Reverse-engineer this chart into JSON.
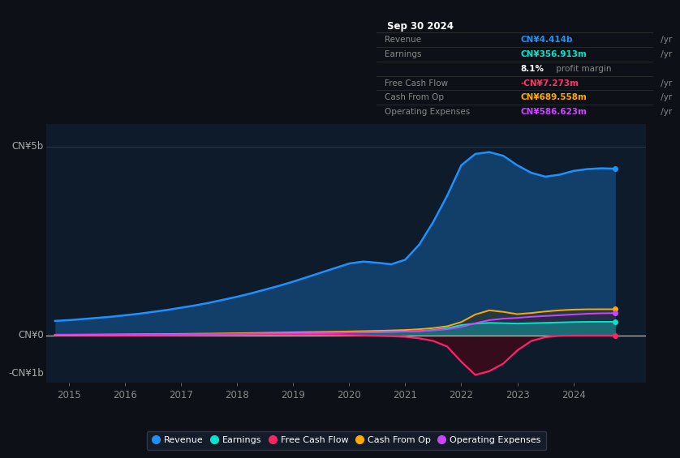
{
  "background_color": "#0d1117",
  "plot_bg_color": "#0d1b2a",
  "ylabel_5b": "CN¥5b",
  "ylabel_0": "CN¥0",
  "ylabel_neg1b": "-CN¥1b",
  "ylim": [
    -1250000000.0,
    5600000000.0
  ],
  "xlim": [
    2014.6,
    2025.3
  ],
  "xticks": [
    2015,
    2016,
    2017,
    2018,
    2019,
    2020,
    2021,
    2022,
    2023,
    2024
  ],
  "grid_color": "#2a3a4a",
  "info_box": {
    "title": "Sep 30 2024",
    "rows": [
      {
        "label": "Revenue",
        "value": "CN¥4.414b /yr",
        "value_color": "#1e90ff"
      },
      {
        "label": "Earnings",
        "value": "CN¥356.913m /yr",
        "value_color": "#00e5cc"
      },
      {
        "label": "",
        "value": "8.1% profit margin",
        "value_color": "#aaaaaa"
      },
      {
        "label": "Free Cash Flow",
        "value": "-CN¥7.273m /yr",
        "value_color": "#ff3366"
      },
      {
        "label": "Cash From Op",
        "value": "CN¥689.558m /yr",
        "value_color": "#ffaa00"
      },
      {
        "label": "Operating Expenses",
        "value": "CN¥586.623m /yr",
        "value_color": "#cc44ff"
      }
    ]
  },
  "series": {
    "years": [
      2014.75,
      2015.0,
      2015.25,
      2015.5,
      2015.75,
      2016.0,
      2016.25,
      2016.5,
      2016.75,
      2017.0,
      2017.25,
      2017.5,
      2017.75,
      2018.0,
      2018.25,
      2018.5,
      2018.75,
      2019.0,
      2019.25,
      2019.5,
      2019.75,
      2020.0,
      2020.25,
      2020.5,
      2020.75,
      2021.0,
      2021.25,
      2021.5,
      2021.75,
      2022.0,
      2022.25,
      2022.5,
      2022.75,
      2023.0,
      2023.25,
      2023.5,
      2023.75,
      2024.0,
      2024.25,
      2024.5,
      2024.75
    ],
    "revenue": [
      380000000.0,
      400000000.0,
      430000000.0,
      460000000.0,
      490000000.0,
      530000000.0,
      570000000.0,
      620000000.0,
      670000000.0,
      730000000.0,
      790000000.0,
      860000000.0,
      940000000.0,
      1020000000.0,
      1110000000.0,
      1210000000.0,
      1310000000.0,
      1420000000.0,
      1540000000.0,
      1660000000.0,
      1780000000.0,
      1900000000.0,
      1950000000.0,
      1920000000.0,
      1880000000.0,
      2000000000.0,
      2400000000.0,
      3000000000.0,
      3700000000.0,
      4500000000.0,
      4800000000.0,
      4850000000.0,
      4750000000.0,
      4500000000.0,
      4300000000.0,
      4200000000.0,
      4250000000.0,
      4350000000.0,
      4400000000.0,
      4420000000.0,
      4410000000.0
    ],
    "earnings": [
      10000000.0,
      11000000.0,
      12000000.0,
      13000000.0,
      14000000.0,
      15000000.0,
      17000000.0,
      19000000.0,
      21000000.0,
      23000000.0,
      25000000.0,
      28000000.0,
      31000000.0,
      34000000.0,
      38000000.0,
      42000000.0,
      47000000.0,
      52000000.0,
      58000000.0,
      64000000.0,
      70000000.0,
      77000000.0,
      83000000.0,
      88000000.0,
      93000000.0,
      98000000.0,
      110000000.0,
      140000000.0,
      190000000.0,
      270000000.0,
      310000000.0,
      330000000.0,
      320000000.0,
      310000000.0,
      320000000.0,
      330000000.0,
      340000000.0,
      350000000.0,
      355000000.0,
      357000000.0,
      357000000.0
    ],
    "free_cash_flow": [
      5000000.0,
      5000000.0,
      3000000.0,
      0,
      -2000000.0,
      -3000000.0,
      -2000000.0,
      0,
      2000000.0,
      4000000.0,
      6000000.0,
      8000000.0,
      10000000.0,
      12000000.0,
      14000000.0,
      15000000.0,
      16000000.0,
      17000000.0,
      16000000.0,
      14000000.0,
      10000000.0,
      5000000.0,
      -5000000.0,
      -15000000.0,
      -25000000.0,
      -40000000.0,
      -80000000.0,
      -150000000.0,
      -300000000.0,
      -700000000.0,
      -1050000000.0,
      -950000000.0,
      -750000000.0,
      -400000000.0,
      -150000000.0,
      -50000000.0,
      -15000000.0,
      -8000000.0,
      -7273000.0,
      -7273000.0,
      -7273000.0
    ],
    "cash_from_op": [
      15000000.0,
      16000000.0,
      18000000.0,
      20000000.0,
      22000000.0,
      24000000.0,
      27000000.0,
      30000000.0,
      33000000.0,
      37000000.0,
      41000000.0,
      45000000.0,
      50000000.0,
      55000000.0,
      60000000.0,
      66000000.0,
      72000000.0,
      78000000.0,
      84000000.0,
      90000000.0,
      96000000.0,
      102000000.0,
      110000000.0,
      118000000.0,
      128000000.0,
      140000000.0,
      160000000.0,
      190000000.0,
      240000000.0,
      350000000.0,
      550000000.0,
      660000000.0,
      620000000.0,
      560000000.0,
      590000000.0,
      630000000.0,
      660000000.0,
      680000000.0,
      688000000.0,
      689600000.0,
      689600000.0
    ],
    "op_expenses": [
      12000000.0,
      13000000.0,
      14000000.0,
      15000000.0,
      16000000.0,
      18000000.0,
      20000000.0,
      22000000.0,
      24000000.0,
      26000000.0,
      29000000.0,
      32000000.0,
      35000000.0,
      38000000.0,
      42000000.0,
      46000000.0,
      50000000.0,
      55000000.0,
      60000000.0,
      65000000.0,
      70000000.0,
      75000000.0,
      80000000.0,
      85000000.0,
      90000000.0,
      98000000.0,
      110000000.0,
      130000000.0,
      160000000.0,
      220000000.0,
      320000000.0,
      400000000.0,
      440000000.0,
      460000000.0,
      490000000.0,
      510000000.0,
      530000000.0,
      550000000.0,
      570000000.0,
      582000000.0,
      586600000.0
    ]
  },
  "colors": {
    "revenue": "#1e90ff",
    "earnings": "#00e5cc",
    "free_cash_flow": "#ff2266",
    "cash_from_op": "#ffaa00",
    "op_expenses": "#cc44ff"
  },
  "legend": [
    {
      "label": "Revenue",
      "color": "#1e90ff"
    },
    {
      "label": "Earnings",
      "color": "#00e5cc"
    },
    {
      "label": "Free Cash Flow",
      "color": "#ff2266"
    },
    {
      "label": "Cash From Op",
      "color": "#ffaa00"
    },
    {
      "label": "Operating Expenses",
      "color": "#cc44ff"
    }
  ]
}
